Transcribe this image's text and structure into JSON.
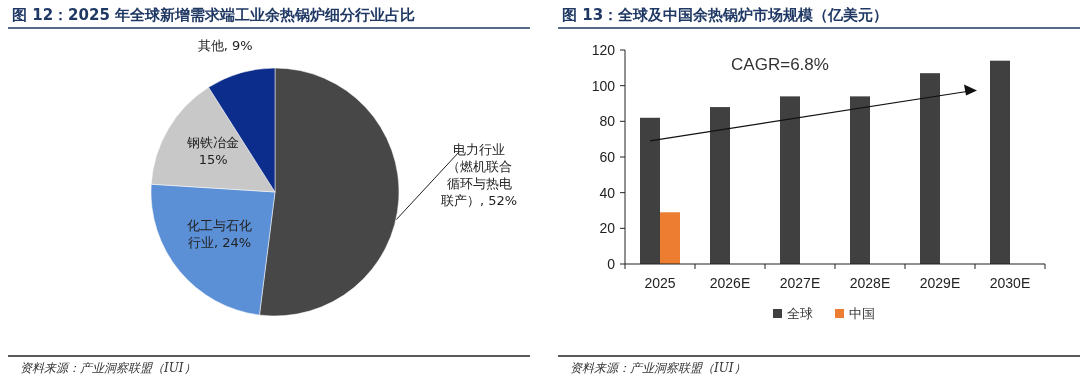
{
  "chart_data": [
    {
      "type": "pie",
      "title": "图 12：2025 年全球新增需求端工业余热锅炉细分行业占比",
      "categories": [
        "电力行业（燃机联合循环与热电联产）",
        "化工与石化行业",
        "钢铁冶金",
        "其他"
      ],
      "values": [
        52,
        24,
        15,
        9
      ],
      "colors": [
        "#474747",
        "#5b8fd6",
        "#c8c8c8",
        "#0c2d8c"
      ],
      "value_labels": [
        "52%",
        "24%",
        "15%",
        "9%"
      ],
      "annotations": [
        "资料来源：产业洞察联盟（IUI）"
      ]
    },
    {
      "type": "bar",
      "title": "图 13：全球及中国余热锅炉市场规模（亿美元）",
      "categories": [
        "2025",
        "2026E",
        "2027E",
        "2028E",
        "2029E",
        "2030E"
      ],
      "series": [
        {
          "name": "全球",
          "color": "#404040",
          "values": [
            82,
            88,
            94,
            94,
            107,
            114
          ]
        },
        {
          "name": "中国",
          "color": "#ed7d31",
          "values": [
            29,
            null,
            null,
            null,
            null,
            null
          ]
        }
      ],
      "ylim": [
        0,
        120
      ],
      "yticks": [
        0,
        20,
        40,
        60,
        80,
        100,
        120
      ],
      "legend": "bottom",
      "annotations": [
        "CAGR=6.8%",
        "资料来源：产业洞察联盟（IUI）"
      ]
    }
  ]
}
